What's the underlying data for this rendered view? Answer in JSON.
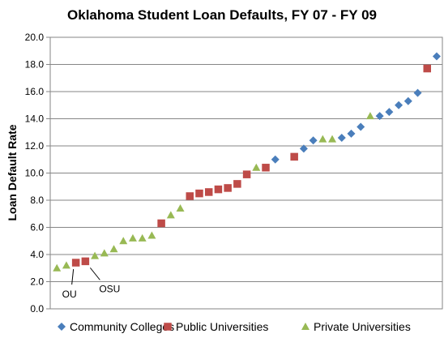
{
  "chart_data": {
    "type": "scatter",
    "title": "Oklahoma Student Loan Defaults, FY 07 - FY 09",
    "ylabel": "Loan Default Rate",
    "xlabel": "",
    "ylim": [
      0,
      20
    ],
    "yticks": [
      "0.0",
      "2.0",
      "4.0",
      "6.0",
      "8.0",
      "10.0",
      "12.0",
      "14.0",
      "16.0",
      "18.0",
      "20.0"
    ],
    "grid": "horizontal",
    "legend_position": "bottom",
    "series": [
      {
        "name": "Community Colleges",
        "color": "#4a7ebb",
        "marker": "diamond",
        "points": [
          [
            24,
            11.0
          ],
          [
            27,
            11.8
          ],
          [
            28,
            12.4
          ],
          [
            31,
            12.6
          ],
          [
            32,
            12.9
          ],
          [
            33,
            13.4
          ],
          [
            35,
            14.2
          ],
          [
            36,
            14.5
          ],
          [
            37,
            15.0
          ],
          [
            38,
            15.3
          ],
          [
            39,
            15.9
          ],
          [
            41,
            18.6
          ]
        ]
      },
      {
        "name": "Public Universities",
        "color": "#be4b48",
        "marker": "square",
        "points": [
          [
            3,
            3.4
          ],
          [
            4,
            3.5
          ],
          [
            12,
            6.3
          ],
          [
            15,
            8.3
          ],
          [
            16,
            8.5
          ],
          [
            17,
            8.6
          ],
          [
            18,
            8.8
          ],
          [
            19,
            8.9
          ],
          [
            20,
            9.2
          ],
          [
            21,
            9.9
          ],
          [
            23,
            10.4
          ],
          [
            26,
            11.2
          ],
          [
            40,
            17.7
          ]
        ]
      },
      {
        "name": "Private Universities",
        "color": "#98b954",
        "marker": "triangle",
        "points": [
          [
            1,
            3.0
          ],
          [
            2,
            3.2
          ],
          [
            5,
            3.9
          ],
          [
            6,
            4.1
          ],
          [
            7,
            4.4
          ],
          [
            8,
            5.0
          ],
          [
            9,
            5.2
          ],
          [
            10,
            5.2
          ],
          [
            11,
            5.4
          ],
          [
            13,
            6.9
          ],
          [
            14,
            7.4
          ],
          [
            22,
            10.4
          ],
          [
            29,
            12.5
          ],
          [
            30,
            12.5
          ],
          [
            34,
            14.2
          ]
        ]
      }
    ],
    "annotations": [
      {
        "text": "OU",
        "x": 3,
        "y": 3.4
      },
      {
        "text": "OSU",
        "x": 4,
        "y": 3.5
      }
    ]
  }
}
